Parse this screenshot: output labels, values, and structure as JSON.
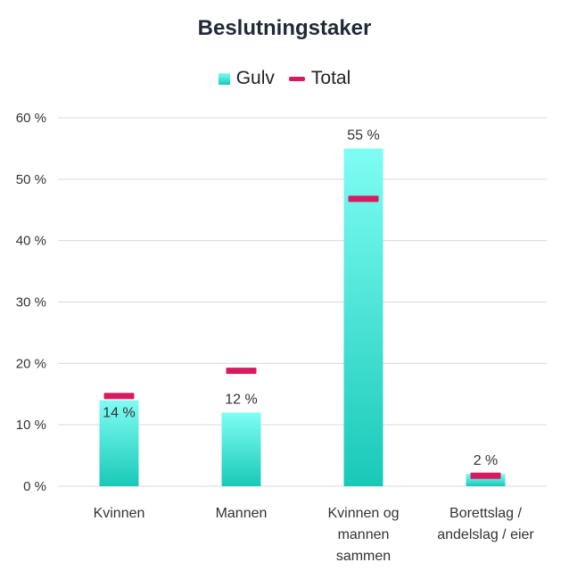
{
  "chart_data": {
    "type": "bar",
    "title": "Beslutningstaker",
    "categories": [
      [
        "Kvinnen"
      ],
      [
        "Mannen"
      ],
      [
        "Kvinnen og",
        "mannen",
        "sammen"
      ],
      [
        "Borettslag /",
        "andelslag / eier"
      ]
    ],
    "series": [
      {
        "name": "Gulv",
        "kind": "bar",
        "values": [
          14,
          12,
          55,
          2
        ],
        "labels": [
          "14 %",
          "12 %",
          "55 %",
          "2 %"
        ]
      },
      {
        "name": "Total",
        "kind": "marker",
        "values": [
          14.7,
          18.8,
          46.8,
          1.7
        ]
      }
    ],
    "ylim": [
      0,
      60
    ],
    "yticks": [
      0,
      10,
      20,
      30,
      40,
      50,
      60
    ],
    "ytick_labels": [
      "0 %",
      "10 %",
      "20 %",
      "30 %",
      "40 %",
      "50 %",
      "60 %"
    ],
    "grid": true,
    "legend_position": "top-center",
    "colors": {
      "bar_top": "#7ffdf4",
      "bar_bottom": "#19c9b8",
      "marker": "#d81b60",
      "grid": "#d9d9d9",
      "text": "#333333"
    }
  }
}
